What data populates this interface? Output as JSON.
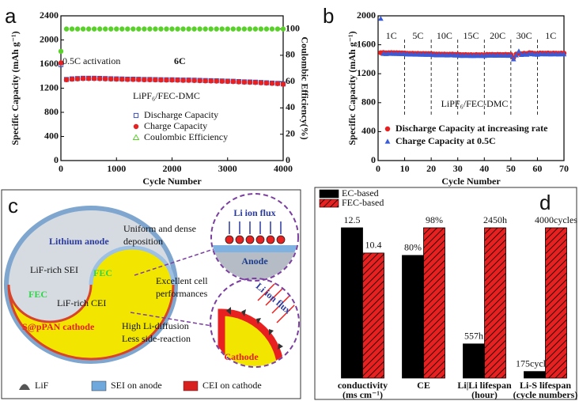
{
  "chart_data": [
    {
      "panel": "a",
      "type": "scatter",
      "x_label": "Cycle Number",
      "y_label": "Specific Capacity (mAh g⁻¹)",
      "y2_label": "Coulombic Efficiency(%)",
      "x": [
        0,
        100,
        200,
        300,
        400,
        500,
        600,
        700,
        800,
        900,
        1000,
        1100,
        1200,
        1300,
        1400,
        1500,
        1600,
        1700,
        1800,
        1900,
        2000,
        2100,
        2200,
        2300,
        2400,
        2500,
        2600,
        2700,
        2800,
        2900,
        3000,
        3100,
        3200,
        3300,
        3400,
        3500,
        3600,
        3700,
        3800,
        3900,
        4000
      ],
      "xlim": [
        0,
        4000
      ],
      "xticks": [
        0,
        1000,
        2000,
        3000,
        4000
      ],
      "ylim": [
        0,
        2400
      ],
      "yticks": [
        0,
        400,
        800,
        1200,
        1600,
        2000,
        2400
      ],
      "y2lim": [
        0,
        110
      ],
      "y2ticks": [
        0,
        20,
        40,
        60,
        80,
        100
      ],
      "annotations": [
        "0.5C activation",
        "6C",
        "LiPF₆/FEC-DMC"
      ],
      "legend": "center",
      "series": [
        {
          "name": "Discharge Capacity",
          "color": "#3b4fc4",
          "marker": "square-open",
          "values": [
            1590,
            1345,
            1355,
            1360,
            1365,
            1365,
            1365,
            1363,
            1360,
            1357,
            1355,
            1353,
            1350,
            1350,
            1348,
            1345,
            1345,
            1343,
            1341,
            1340,
            1340,
            1338,
            1335,
            1335,
            1333,
            1330,
            1327,
            1325,
            1323,
            1320,
            1317,
            1315,
            1310,
            1305,
            1303,
            1300,
            1295,
            1290,
            1285,
            1280,
            1270
          ]
        },
        {
          "name": "Charge Capacity",
          "color": "#e8201f",
          "marker": "circle",
          "values": [
            1620,
            1340,
            1350,
            1355,
            1360,
            1360,
            1360,
            1358,
            1355,
            1352,
            1350,
            1348,
            1345,
            1345,
            1343,
            1340,
            1340,
            1338,
            1336,
            1335,
            1335,
            1333,
            1330,
            1330,
            1328,
            1325,
            1322,
            1320,
            1318,
            1315,
            1312,
            1310,
            1305,
            1300,
            1298,
            1295,
            1290,
            1285,
            1280,
            1275,
            1265
          ]
        },
        {
          "name": "Coulombic Efficiency",
          "color": "#5ad12a",
          "marker": "circle",
          "axis": "y2",
          "values": [
            83,
            100,
            100,
            100,
            100,
            100,
            100,
            100,
            100,
            100,
            100,
            100,
            100,
            100,
            100,
            100,
            100,
            100,
            100,
            100,
            100,
            100,
            100,
            100,
            100,
            100,
            100,
            100,
            100,
            100,
            100,
            100,
            100,
            100,
            100,
            100,
            100,
            100,
            100,
            100,
            100
          ]
        }
      ]
    },
    {
      "panel": "b",
      "type": "scatter",
      "x_label": "Cycle Number",
      "y_label": "Specific Capacity (mAh g⁻¹)",
      "x": [
        1,
        2,
        3,
        4,
        5,
        6,
        7,
        8,
        9,
        10,
        11,
        12,
        13,
        14,
        15,
        16,
        17,
        18,
        19,
        20,
        21,
        22,
        23,
        24,
        25,
        26,
        27,
        28,
        29,
        30,
        31,
        32,
        33,
        34,
        35,
        36,
        37,
        38,
        39,
        40,
        41,
        42,
        43,
        44,
        45,
        46,
        47,
        48,
        49,
        50,
        51,
        52,
        53,
        54,
        55,
        56,
        57,
        58,
        59,
        60,
        61,
        62,
        63,
        64,
        65,
        66,
        67,
        68,
        69,
        70
      ],
      "xlim": [
        0,
        70
      ],
      "xticks": [
        0,
        10,
        20,
        30,
        40,
        50,
        60,
        70
      ],
      "ylim": [
        0,
        2000
      ],
      "yticks": [
        0,
        400,
        800,
        1200,
        1600,
        2000
      ],
      "rate_labels": [
        "1C",
        "5C",
        "10C",
        "15C",
        "20C",
        "30C",
        "1C"
      ],
      "rate_boundaries": [
        10,
        20,
        30,
        40,
        50,
        60
      ],
      "annotations": [
        "LiPF₆/FEC-DMC"
      ],
      "legend": "bottom-left",
      "series": [
        {
          "name": "Discharge Capacity at increasing rate",
          "color": "#e8201f",
          "marker": "circle",
          "values": [
            1490,
            1492,
            1488,
            1490,
            1491,
            1489,
            1490,
            1488,
            1487,
            1486,
            1482,
            1480,
            1481,
            1479,
            1480,
            1478,
            1479,
            1477,
            1478,
            1476,
            1472,
            1470,
            1471,
            1469,
            1470,
            1468,
            1469,
            1470,
            1467,
            1468,
            1463,
            1462,
            1464,
            1461,
            1462,
            1460,
            1463,
            1461,
            1462,
            1460,
            1466,
            1465,
            1467,
            1464,
            1466,
            1465,
            1464,
            1466,
            1463,
            1465,
            1420,
            1470,
            1480,
            1475,
            1482,
            1478,
            1490,
            1485,
            1480,
            1478,
            1485,
            1484,
            1483,
            1485,
            1482,
            1484,
            1483,
            1482,
            1484,
            1483
          ]
        },
        {
          "name": "Charge Capacity at 0.5C",
          "color": "#3a5bd9",
          "marker": "triangle",
          "values": [
            1960,
            1475,
            1473,
            1475,
            1476,
            1474,
            1475,
            1473,
            1472,
            1471,
            1467,
            1465,
            1466,
            1464,
            1465,
            1463,
            1464,
            1462,
            1463,
            1461,
            1457,
            1455,
            1456,
            1454,
            1455,
            1453,
            1454,
            1455,
            1452,
            1453,
            1448,
            1447,
            1449,
            1446,
            1447,
            1445,
            1448,
            1446,
            1447,
            1445,
            1451,
            1450,
            1452,
            1449,
            1451,
            1450,
            1449,
            1451,
            1448,
            1450,
            1400,
            1455,
            1510,
            1460,
            1467,
            1463,
            1475,
            1470,
            1465,
            1463,
            1470,
            1469,
            1468,
            1470,
            1467,
            1469,
            1468,
            1467,
            1469,
            1468
          ]
        }
      ]
    },
    {
      "panel": "d",
      "type": "bar",
      "categories": [
        "conductivity\n(ms cm⁻¹)",
        "CE",
        "Li|Li lifespan\n(hour)",
        "Li-S  lifespan\n(cycle numbers)"
      ],
      "legend": "top-left",
      "series": [
        {
          "name": "EC-based",
          "color": "#000000",
          "values": [
            12.5,
            80,
            557,
            175
          ],
          "value_labels": [
            "12.5",
            "80%",
            "557h",
            "175cycles"
          ]
        },
        {
          "name": "FEC-based",
          "color": "#e8201f",
          "hatch": true,
          "values": [
            10.4,
            98,
            2450,
            4000
          ],
          "value_labels": [
            "10.4",
            "98%",
            "2450h",
            "4000cycles"
          ]
        }
      ]
    }
  ],
  "diagram": {
    "panel": "c",
    "yin_yang": {
      "anode": "Lithium anode",
      "sei": "LiF-rich SEI",
      "fec_top": "FEC",
      "fec_bottom": "FEC",
      "cei": "LiF-rich CEI",
      "cathode": "S@pPAN cathode"
    },
    "callouts": [
      [
        "Uniform and dense",
        "deposition"
      ],
      [
        "Excellent cell",
        "performances"
      ],
      [
        "High Li-diffusion",
        "Less side-reaction"
      ]
    ],
    "anode_detail": {
      "flux": "Li ion flux",
      "label": "Anode"
    },
    "cathode_detail": {
      "flux": "Li ion flux",
      "label": "Cathode"
    },
    "legend": [
      "LiF",
      "SEI on anode",
      "CEI on cathode"
    ]
  }
}
